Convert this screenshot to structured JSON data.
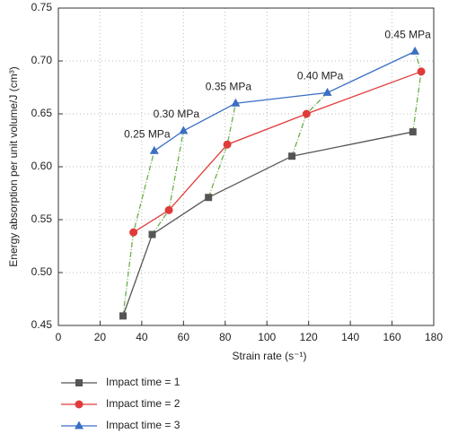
{
  "chart_data": {
    "type": "line",
    "x_label": "Strain rate (s⁻¹)",
    "y_label": "Energy absorption per unit volume/J (cm³)",
    "xlim": [
      0,
      180
    ],
    "xticks": [
      0,
      20,
      40,
      60,
      80,
      100,
      120,
      140,
      160,
      180
    ],
    "ylim": [
      0.45,
      0.75
    ],
    "yticks": [
      0.45,
      {
        "value": 0.5,
        "label": "0.50"
      },
      0.55,
      {
        "value": 0.6,
        "label": "0.60"
      },
      0.65,
      {
        "value": 0.7,
        "label": "0.70"
      },
      0.75
    ],
    "grid": true,
    "connector_color": "#6ab04c",
    "annotations": [
      "0.25 MPa",
      "0.30 MPa",
      "0.35 MPa",
      "0.40 MPa",
      "0.45 MPa"
    ],
    "series": [
      {
        "name": "Impact time = 1",
        "color": "#555555",
        "marker": "square",
        "x": [
          31,
          45,
          72,
          112,
          170
        ],
        "values": [
          0.459,
          0.536,
          0.571,
          0.61,
          0.633
        ]
      },
      {
        "name": "Impact time = 2",
        "color": "#e03a3a",
        "marker": "circle",
        "x": [
          36,
          53,
          81,
          119,
          174
        ],
        "values": [
          0.538,
          0.559,
          0.621,
          0.65,
          0.69
        ]
      },
      {
        "name": "Impact time = 3",
        "color": "#3a6fc4",
        "marker": "triangle",
        "x": [
          46,
          60,
          85,
          129,
          171
        ],
        "values": [
          0.615,
          0.634,
          0.66,
          0.67,
          0.709
        ]
      }
    ]
  }
}
